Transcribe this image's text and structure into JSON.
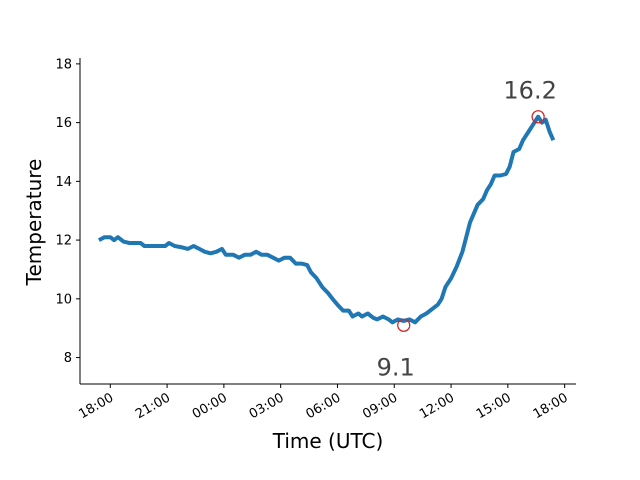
{
  "chart_data": {
    "type": "line",
    "xlabel": "Time (UTC)",
    "ylabel": "Temperature",
    "x_unit": "hour offset from 18:00 of first day",
    "x_ticks": [
      "18:00",
      "21:00",
      "00:00",
      "03:00",
      "06:00",
      "09:00",
      "12:00",
      "15:00",
      "18:00"
    ],
    "y_ticks": [
      "8",
      "10",
      "12",
      "14",
      "16",
      "18"
    ],
    "ylim": [
      7.1,
      18.2
    ],
    "xlim": [
      -1.6,
      24.6
    ],
    "grid": false,
    "series": [
      {
        "color": "#1f77b4",
        "points": [
          [
            -0.6,
            12.0
          ],
          [
            -0.3,
            12.1
          ],
          [
            0.0,
            12.1
          ],
          [
            0.2,
            12.0
          ],
          [
            0.4,
            12.1
          ],
          [
            0.7,
            11.95
          ],
          [
            1.0,
            11.9
          ],
          [
            1.3,
            11.9
          ],
          [
            1.6,
            11.9
          ],
          [
            1.8,
            11.8
          ],
          [
            2.2,
            11.8
          ],
          [
            2.6,
            11.8
          ],
          [
            2.9,
            11.8
          ],
          [
            3.1,
            11.9
          ],
          [
            3.4,
            11.8
          ],
          [
            3.8,
            11.75
          ],
          [
            4.1,
            11.7
          ],
          [
            4.4,
            11.8
          ],
          [
            4.7,
            11.7
          ],
          [
            5.0,
            11.6
          ],
          [
            5.3,
            11.55
          ],
          [
            5.6,
            11.6
          ],
          [
            5.9,
            11.7
          ],
          [
            6.1,
            11.5
          ],
          [
            6.5,
            11.5
          ],
          [
            6.8,
            11.4
          ],
          [
            7.1,
            11.5
          ],
          [
            7.4,
            11.5
          ],
          [
            7.7,
            11.6
          ],
          [
            8.0,
            11.5
          ],
          [
            8.3,
            11.5
          ],
          [
            8.6,
            11.4
          ],
          [
            8.9,
            11.3
          ],
          [
            9.2,
            11.4
          ],
          [
            9.5,
            11.4
          ],
          [
            9.8,
            11.2
          ],
          [
            10.1,
            11.2
          ],
          [
            10.4,
            11.15
          ],
          [
            10.6,
            10.9
          ],
          [
            10.9,
            10.7
          ],
          [
            11.2,
            10.4
          ],
          [
            11.5,
            10.2
          ],
          [
            11.8,
            9.95
          ],
          [
            12.0,
            9.8
          ],
          [
            12.3,
            9.6
          ],
          [
            12.6,
            9.6
          ],
          [
            12.8,
            9.4
          ],
          [
            13.1,
            9.5
          ],
          [
            13.3,
            9.4
          ],
          [
            13.6,
            9.5
          ],
          [
            13.9,
            9.35
          ],
          [
            14.1,
            9.3
          ],
          [
            14.4,
            9.4
          ],
          [
            14.7,
            9.3
          ],
          [
            14.9,
            9.2
          ],
          [
            15.2,
            9.3
          ],
          [
            15.5,
            9.25
          ],
          [
            15.8,
            9.3
          ],
          [
            16.1,
            9.2
          ],
          [
            16.4,
            9.4
          ],
          [
            16.7,
            9.5
          ],
          [
            17.0,
            9.65
          ],
          [
            17.3,
            9.8
          ],
          [
            17.5,
            10.0
          ],
          [
            17.7,
            10.4
          ],
          [
            18.0,
            10.7
          ],
          [
            18.3,
            11.1
          ],
          [
            18.6,
            11.6
          ],
          [
            18.8,
            12.1
          ],
          [
            19.0,
            12.6
          ],
          [
            19.2,
            12.9
          ],
          [
            19.4,
            13.2
          ],
          [
            19.7,
            13.4
          ],
          [
            19.9,
            13.7
          ],
          [
            20.1,
            13.9
          ],
          [
            20.3,
            14.2
          ],
          [
            20.6,
            14.2
          ],
          [
            20.9,
            14.25
          ],
          [
            21.1,
            14.5
          ],
          [
            21.3,
            15.0
          ],
          [
            21.6,
            15.1
          ],
          [
            21.8,
            15.4
          ],
          [
            22.0,
            15.6
          ],
          [
            22.2,
            15.8
          ],
          [
            22.4,
            16.0
          ],
          [
            22.6,
            16.2
          ],
          [
            22.8,
            16.0
          ],
          [
            23.0,
            16.1
          ],
          [
            23.2,
            15.7
          ],
          [
            23.4,
            15.4
          ]
        ]
      }
    ],
    "annotations": [
      {
        "label": "9.1",
        "x": 15.5,
        "y": 9.1,
        "type": "min",
        "marker_color": "#d62728"
      },
      {
        "label": "16.2",
        "x": 22.6,
        "y": 16.2,
        "type": "max",
        "marker_color": "#d62728"
      }
    ]
  }
}
